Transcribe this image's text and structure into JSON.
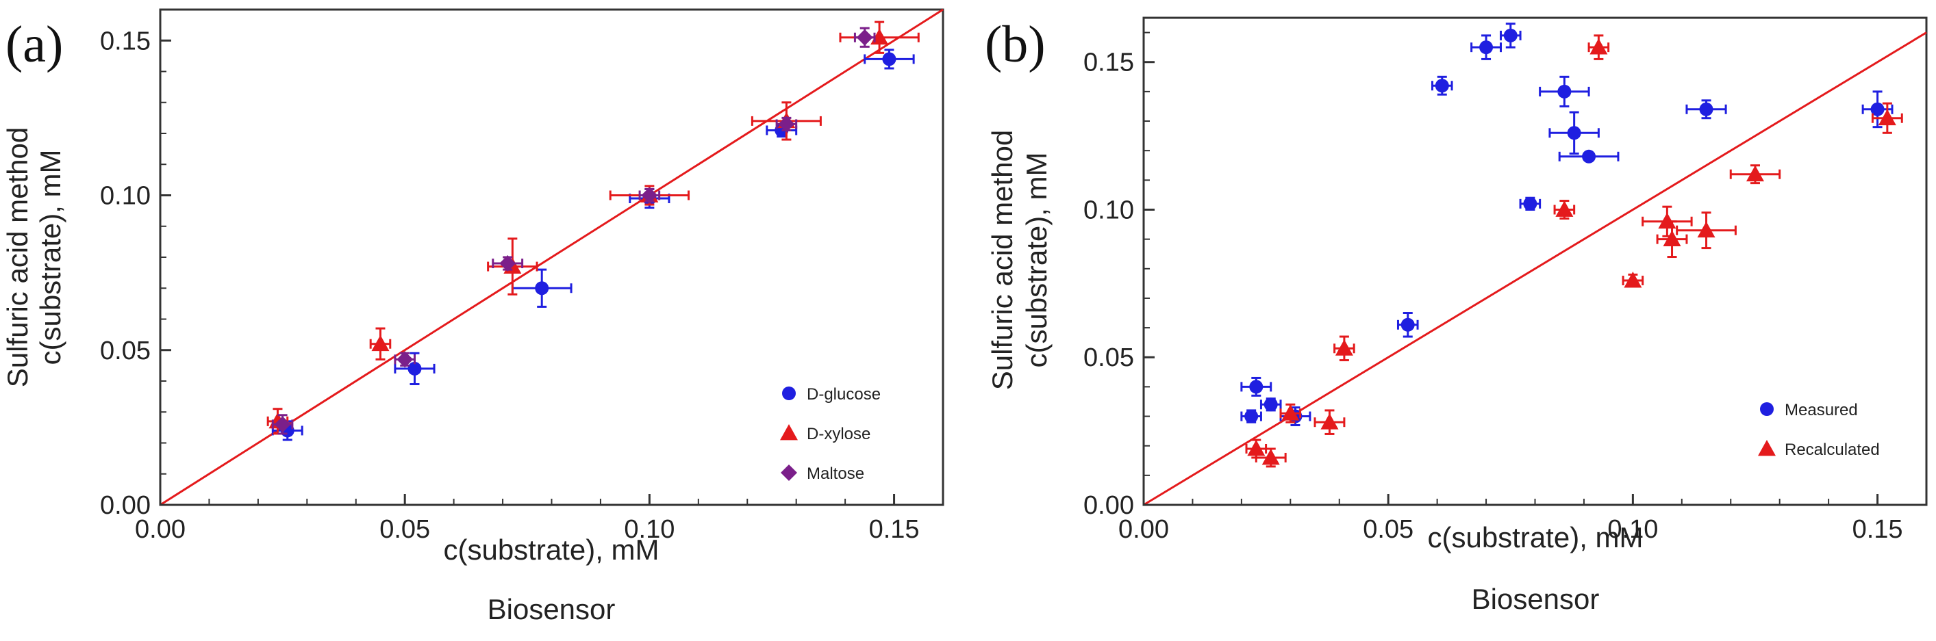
{
  "chart_data": [
    {
      "type": "scatter",
      "panel_label": "(a)",
      "xlabel": "c(substrate), mM",
      "xlabel2": "Biosensor",
      "ylabel": "c(substrate), mM",
      "ylabel2": "Sulfuric acid method",
      "xlim": [
        0,
        0.16
      ],
      "ylim": [
        0,
        0.16
      ],
      "xticks": [
        "0.00",
        "0.05",
        "0.10",
        "0.15"
      ],
      "yticks": [
        "0.00",
        "0.05",
        "0.10",
        "0.15"
      ],
      "reference_line": {
        "from": [
          0,
          0
        ],
        "to": [
          0.16,
          0.16
        ],
        "color": "#e41a1c"
      },
      "legend_position": "bottom-right",
      "series": [
        {
          "name": "D-glucose",
          "marker": "circle",
          "color": "#1f1fe0",
          "points": [
            {
              "x": 0.026,
              "y": 0.024,
              "xerr": 0.003,
              "yerr": 0.003
            },
            {
              "x": 0.052,
              "y": 0.044,
              "xerr": 0.004,
              "yerr": 0.005
            },
            {
              "x": 0.078,
              "y": 0.07,
              "xerr": 0.006,
              "yerr": 0.006
            },
            {
              "x": 0.1,
              "y": 0.099,
              "xerr": 0.004,
              "yerr": 0.003
            },
            {
              "x": 0.127,
              "y": 0.121,
              "xerr": 0.003,
              "yerr": 0.002
            },
            {
              "x": 0.149,
              "y": 0.144,
              "xerr": 0.005,
              "yerr": 0.003
            }
          ]
        },
        {
          "name": "D-xylose",
          "marker": "triangle",
          "color": "#e41a1c",
          "points": [
            {
              "x": 0.024,
              "y": 0.027,
              "xerr": 0.002,
              "yerr": 0.004
            },
            {
              "x": 0.045,
              "y": 0.052,
              "xerr": 0.002,
              "yerr": 0.005
            },
            {
              "x": 0.072,
              "y": 0.077,
              "xerr": 0.005,
              "yerr": 0.009
            },
            {
              "x": 0.1,
              "y": 0.1,
              "xerr": 0.008,
              "yerr": 0.003
            },
            {
              "x": 0.128,
              "y": 0.124,
              "xerr": 0.007,
              "yerr": 0.006
            },
            {
              "x": 0.147,
              "y": 0.151,
              "xerr": 0.008,
              "yerr": 0.005
            }
          ]
        },
        {
          "name": "Maltose",
          "marker": "diamond",
          "color": "#7b1f8a",
          "points": [
            {
              "x": 0.025,
              "y": 0.026,
              "xerr": 0.002,
              "yerr": 0.003
            },
            {
              "x": 0.05,
              "y": 0.047,
              "xerr": 0.002,
              "yerr": 0.002
            },
            {
              "x": 0.071,
              "y": 0.078,
              "xerr": 0.003,
              "yerr": 0.002
            },
            {
              "x": 0.1,
              "y": 0.1,
              "xerr": 0.002,
              "yerr": 0.002
            },
            {
              "x": 0.128,
              "y": 0.123,
              "xerr": 0.002,
              "yerr": 0.002
            },
            {
              "x": 0.144,
              "y": 0.151,
              "xerr": 0.002,
              "yerr": 0.003
            }
          ]
        }
      ]
    },
    {
      "type": "scatter",
      "panel_label": "(b)",
      "xlabel": "c(substrate), mM",
      "xlabel2": "Biosensor",
      "ylabel": "c(substrate), mM",
      "ylabel2": "Sulfuric acid method",
      "xlim": [
        0,
        0.16
      ],
      "ylim": [
        0,
        0.165
      ],
      "xticks": [
        "0.00",
        "0.05",
        "0.10",
        "0.15"
      ],
      "yticks": [
        "0.00",
        "0.05",
        "0.10",
        "0.15"
      ],
      "reference_line": {
        "from": [
          0,
          0
        ],
        "to": [
          0.16,
          0.16
        ],
        "color": "#e41a1c"
      },
      "legend_position": "bottom-right",
      "series": [
        {
          "name": "Measured",
          "marker": "circle",
          "color": "#1f1fe0",
          "points": [
            {
              "x": 0.022,
              "y": 0.03,
              "xerr": 0.002,
              "yerr": 0.002
            },
            {
              "x": 0.023,
              "y": 0.04,
              "xerr": 0.003,
              "yerr": 0.003
            },
            {
              "x": 0.026,
              "y": 0.034,
              "xerr": 0.002,
              "yerr": 0.002
            },
            {
              "x": 0.031,
              "y": 0.03,
              "xerr": 0.003,
              "yerr": 0.003
            },
            {
              "x": 0.054,
              "y": 0.061,
              "xerr": 0.002,
              "yerr": 0.004
            },
            {
              "x": 0.061,
              "y": 0.142,
              "xerr": 0.002,
              "yerr": 0.003
            },
            {
              "x": 0.07,
              "y": 0.155,
              "xerr": 0.003,
              "yerr": 0.004
            },
            {
              "x": 0.075,
              "y": 0.159,
              "xerr": 0.002,
              "yerr": 0.004
            },
            {
              "x": 0.079,
              "y": 0.102,
              "xerr": 0.002,
              "yerr": 0.002
            },
            {
              "x": 0.086,
              "y": 0.14,
              "xerr": 0.005,
              "yerr": 0.005
            },
            {
              "x": 0.088,
              "y": 0.126,
              "xerr": 0.005,
              "yerr": 0.007
            },
            {
              "x": 0.091,
              "y": 0.118,
              "xerr": 0.006,
              "yerr": 0.001
            },
            {
              "x": 0.115,
              "y": 0.134,
              "xerr": 0.004,
              "yerr": 0.003
            },
            {
              "x": 0.15,
              "y": 0.134,
              "xerr": 0.003,
              "yerr": 0.006
            }
          ]
        },
        {
          "name": "Recalculated",
          "marker": "triangle",
          "color": "#e41a1c",
          "points": [
            {
              "x": 0.023,
              "y": 0.019,
              "xerr": 0.002,
              "yerr": 0.003
            },
            {
              "x": 0.026,
              "y": 0.016,
              "xerr": 0.003,
              "yerr": 0.003
            },
            {
              "x": 0.03,
              "y": 0.031,
              "xerr": 0.002,
              "yerr": 0.003
            },
            {
              "x": 0.038,
              "y": 0.028,
              "xerr": 0.003,
              "yerr": 0.004
            },
            {
              "x": 0.041,
              "y": 0.053,
              "xerr": 0.002,
              "yerr": 0.004
            },
            {
              "x": 0.086,
              "y": 0.1,
              "xerr": 0.002,
              "yerr": 0.003
            },
            {
              "x": 0.093,
              "y": 0.155,
              "xerr": 0.002,
              "yerr": 0.004
            },
            {
              "x": 0.1,
              "y": 0.076,
              "xerr": 0.002,
              "yerr": 0.002
            },
            {
              "x": 0.107,
              "y": 0.096,
              "xerr": 0.005,
              "yerr": 0.005
            },
            {
              "x": 0.108,
              "y": 0.09,
              "xerr": 0.003,
              "yerr": 0.006
            },
            {
              "x": 0.115,
              "y": 0.093,
              "xerr": 0.006,
              "yerr": 0.006
            },
            {
              "x": 0.125,
              "y": 0.112,
              "xerr": 0.005,
              "yerr": 0.003
            },
            {
              "x": 0.152,
              "y": 0.131,
              "xerr": 0.003,
              "yerr": 0.005
            }
          ]
        }
      ]
    }
  ]
}
